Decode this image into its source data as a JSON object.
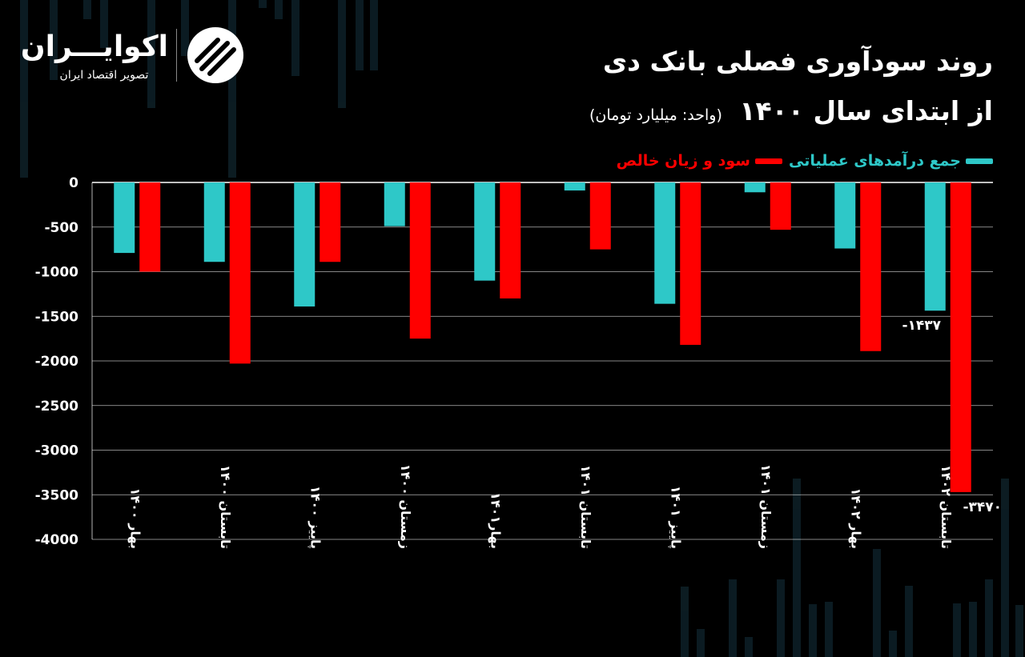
{
  "brand": {
    "name": "اکوایـــران",
    "tagline": "تصویر اقتصاد ایران"
  },
  "colors": {
    "operating": "#2ec8c8",
    "net": "#ff0000",
    "grid": "#ffffff",
    "background": "#000000"
  },
  "header": {
    "title_line1": "روند سودآوری فصلی بانک دی",
    "title_line2": "از ابتدای سال ۱۴۰۰",
    "unit": "(واحد: میلیارد تومان)"
  },
  "chart_data": {
    "type": "bar",
    "title": "روند سودآوری فصلی بانک دی از ابتدای سال ۱۴۰۰",
    "ylabel": "واحد: میلیارد تومان",
    "ylim": [
      -4000,
      0
    ],
    "yticks": [
      0,
      -500,
      -1000,
      -1500,
      -2000,
      -2500,
      -3000,
      -3500,
      -4000
    ],
    "ytick_labels": [
      "0",
      "-500",
      "-1000",
      "-1500",
      "-2000",
      "-2500",
      "-3000",
      "-3500",
      "-4000"
    ],
    "categories": [
      "بهار ۱۴۰۰",
      "تابستان ۱۴۰۰",
      "پاییز ۱۴۰۰",
      "زمستان ۱۴۰۰",
      "بهار۱۴۰۱",
      "تابستان ۱۴۰۱",
      "پاییز ۱۴۰۱",
      "زمستان ۱۴۰۱",
      "بهار ۱۴۰۲",
      "تابستان ۱۴۰۲"
    ],
    "legend_position": "top-right",
    "series": [
      {
        "name": "جمع درآمدهای عملیاتی",
        "color": "#2ec8c8",
        "values": [
          -790,
          -890,
          -1390,
          -490,
          -1100,
          -90,
          -1360,
          -110,
          -740,
          -1437
        ]
      },
      {
        "name": "سود و زیان خالص",
        "color": "#ff0000",
        "values": [
          -1000,
          -2030,
          -890,
          -1750,
          -1300,
          -750,
          -1820,
          -530,
          -1890,
          -3470
        ]
      }
    ],
    "annotations": [
      {
        "series": 0,
        "index": 9,
        "text": "-۱۴۳۷"
      },
      {
        "series": 1,
        "index": 9,
        "text": "-۳۴۷۰"
      }
    ]
  }
}
